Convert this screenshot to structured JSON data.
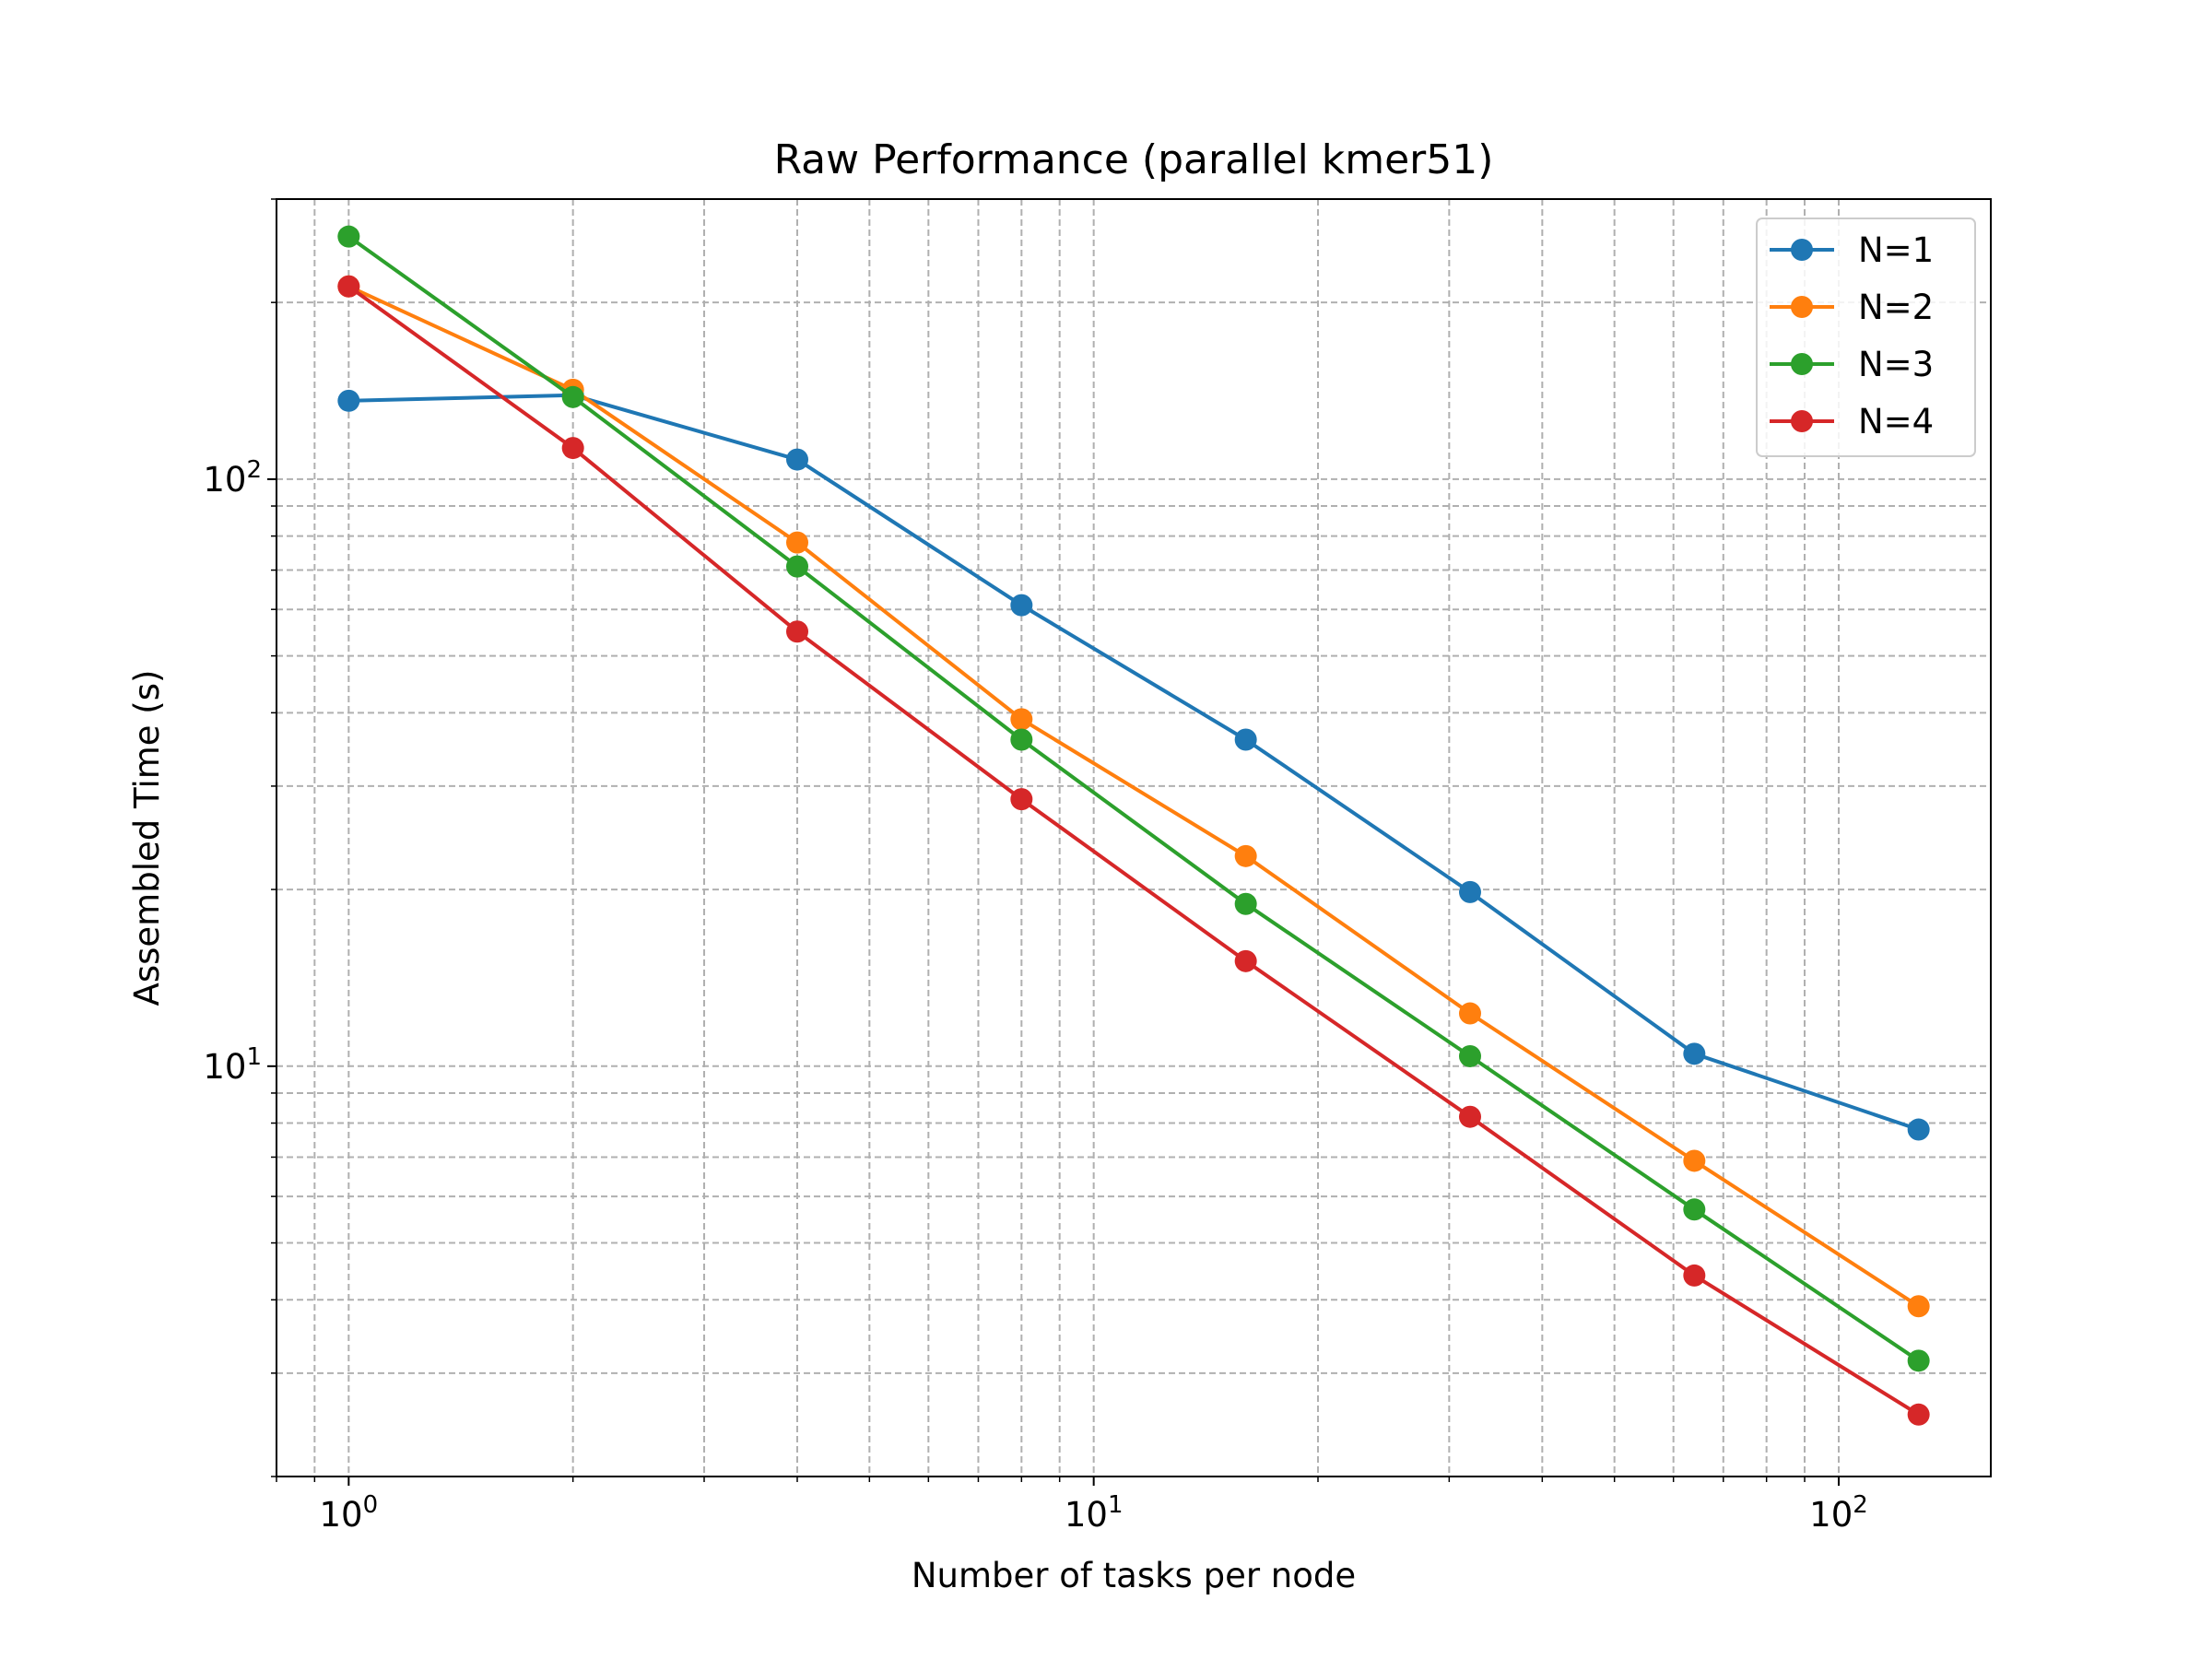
{
  "chart_data": {
    "type": "line",
    "title": "Raw Performance (parallel kmer51)",
    "xlabel": "Number of tasks per node",
    "ylabel": "Assembled Time (s)",
    "xscale": "log",
    "yscale": "log",
    "xlim": [
      0.8,
      160
    ],
    "ylim": [
      2.0,
      300
    ],
    "grid": true,
    "legend_position": "top-right",
    "x": [
      1,
      2,
      4,
      8,
      16,
      32,
      64,
      128
    ],
    "x_ticks": [
      {
        "value": 1,
        "base": "10",
        "exp": "0"
      },
      {
        "value": 10,
        "base": "10",
        "exp": "1"
      },
      {
        "value": 100,
        "base": "10",
        "exp": "2"
      }
    ],
    "y_ticks": [
      {
        "value": 10,
        "base": "10",
        "exp": "1"
      },
      {
        "value": 100,
        "base": "10",
        "exp": "2"
      }
    ],
    "series": [
      {
        "name": "N=1",
        "color": "#1f77b4",
        "values": [
          136,
          139,
          108,
          61,
          36,
          19.8,
          10.5,
          7.8
        ]
      },
      {
        "name": "N=2",
        "color": "#ff7f0e",
        "values": [
          213,
          142,
          78,
          39,
          22.8,
          12.3,
          6.9,
          3.9
        ]
      },
      {
        "name": "N=3",
        "color": "#2ca02c",
        "values": [
          259,
          138,
          71,
          36,
          18.9,
          10.4,
          5.7,
          3.15
        ]
      },
      {
        "name": "N=4",
        "color": "#d62728",
        "values": [
          213,
          113,
          55,
          28.5,
          15.1,
          8.2,
          4.4,
          2.55
        ]
      }
    ]
  }
}
